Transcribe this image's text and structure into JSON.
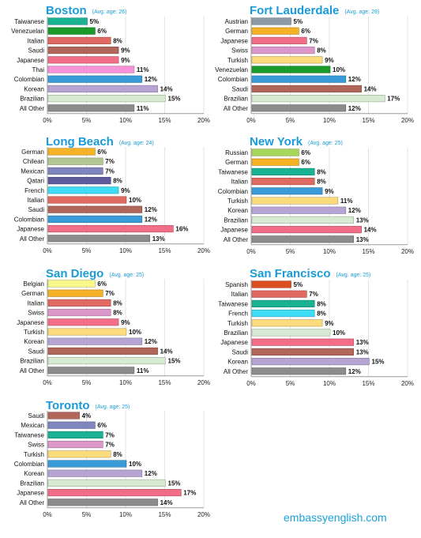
{
  "footer": {
    "site": "embassyenglish.com"
  },
  "colors": {
    "title": "#1a9bd7",
    "Taiwanese": "#19b394",
    "Venezuelan": "#1a9a2a",
    "Italian": "#e06a62",
    "Saudi": "#b2665a",
    "Japanese": "#f26e88",
    "Thai": "#f792da",
    "Colombian": "#3a9bd9",
    "Korean": "#b6a4d4",
    "Brazilian": "#d7ebd2",
    "All Other": "#8c8c8c",
    "Austrian": "#8c9aa8",
    "German": "#f5b225",
    "Swiss": "#dc98cb",
    "Turkish": "#fbdb7c",
    "Chilean": "#b3c793",
    "Mexican": "#7f86bf",
    "Qatari": "#5e5a9c",
    "French": "#3fdcf6",
    "Russian": "#a7d85c",
    "Belgian": "#f8f88a",
    "Spanish": "#dc4e1f"
  },
  "chart_data": [
    {
      "type": "bar",
      "orientation": "horizontal",
      "title": "Boston",
      "subtitle": "(Avg. age: 26)",
      "xlim": [
        0,
        20
      ],
      "ticks": [
        "0%",
        "5%",
        "10%",
        "15%",
        "20%"
      ],
      "categories": [
        "Taiwanese",
        "Venezuelan",
        "Italian",
        "Saudi",
        "Japanese",
        "Thai",
        "Colombian",
        "Korean",
        "Brazilian",
        "All Other"
      ],
      "values": [
        5,
        6,
        8,
        9,
        9,
        11,
        12,
        14,
        15,
        11
      ],
      "labels": [
        "5%",
        "6%",
        "8%",
        "9%",
        "9%",
        "11%",
        "12%",
        "14%",
        "15%",
        "11%"
      ]
    },
    {
      "type": "bar",
      "orientation": "horizontal",
      "title": "Fort Lauderdale",
      "subtitle": "(Avg. age: 28)",
      "xlim": [
        0,
        20
      ],
      "ticks": [
        "0%",
        "5%",
        "10%",
        "15%",
        "20%"
      ],
      "categories": [
        "Austrian",
        "German",
        "Japanese",
        "Swiss",
        "Turkish",
        "Venezuelan",
        "Colombian",
        "Saudi",
        "Brazilian",
        "All Other"
      ],
      "values": [
        5,
        6,
        7,
        8,
        9,
        10,
        12,
        14,
        17,
        12
      ],
      "labels": [
        "5%",
        "6%",
        "7%",
        "8%",
        "9%",
        "10%",
        "12%",
        "14%",
        "17%",
        "12%"
      ]
    },
    {
      "type": "bar",
      "orientation": "horizontal",
      "title": "Long Beach",
      "subtitle": "(Avg. age: 24)",
      "xlim": [
        0,
        20
      ],
      "ticks": [
        "0%",
        "5%",
        "10%",
        "15%",
        "20%"
      ],
      "categories": [
        "German",
        "Chilean",
        "Mexican",
        "Qatari",
        "French",
        "Italian",
        "Saudi",
        "Colombian",
        "Japanese",
        "All Other"
      ],
      "values": [
        6,
        7,
        7,
        8,
        9,
        10,
        12,
        12,
        16,
        13
      ],
      "labels": [
        "6%",
        "7%",
        "7%",
        "8%",
        "9%",
        "10%",
        "12%",
        "12%",
        "16%",
        "13%"
      ]
    },
    {
      "type": "bar",
      "orientation": "horizontal",
      "title": "New York",
      "subtitle": "(Avg. age: 25)",
      "xlim": [
        0,
        20
      ],
      "ticks": [
        "0%",
        "5%",
        "10%",
        "15%",
        "20%"
      ],
      "categories": [
        "Russian",
        "German",
        "Taiwanese",
        "Italian",
        "Colombian",
        "Turkish",
        "Korean",
        "Brazilian",
        "Japanese",
        "All Other"
      ],
      "values": [
        6,
        6,
        8,
        8,
        9,
        11,
        12,
        13,
        14,
        13
      ],
      "labels": [
        "6%",
        "6%",
        "8%",
        "8%",
        "9%",
        "11%",
        "12%",
        "13%",
        "14%",
        "13%"
      ]
    },
    {
      "type": "bar",
      "orientation": "horizontal",
      "title": "San Diego",
      "subtitle": "(Avg. age: 25)",
      "xlim": [
        0,
        20
      ],
      "ticks": [
        "0%",
        "5%",
        "10%",
        "15%",
        "20%"
      ],
      "categories": [
        "Belgian",
        "German",
        "Italian",
        "Swiss",
        "Japanese",
        "Turkish",
        "Korean",
        "Saudi",
        "Brazilian",
        "All Other"
      ],
      "values": [
        6,
        7,
        8,
        8,
        9,
        10,
        12,
        14,
        15,
        11
      ],
      "labels": [
        "6%",
        "7%",
        "8%",
        "8%",
        "9%",
        "10%",
        "12%",
        "14%",
        "15%",
        "11%"
      ]
    },
    {
      "type": "bar",
      "orientation": "horizontal",
      "title": "San Francisco",
      "subtitle": "(Avg. age: 25)",
      "xlim": [
        0,
        20
      ],
      "ticks": [
        "0%",
        "5%",
        "10%",
        "15%",
        "20%"
      ],
      "categories": [
        "Spanish",
        "Italian",
        "Taiwanese",
        "French",
        "Turkish",
        "Brazilian",
        "Japanese",
        "Saudi",
        "Korean",
        "All Other"
      ],
      "values": [
        5,
        7,
        8,
        8,
        9,
        10,
        13,
        13,
        15,
        12
      ],
      "labels": [
        "5%",
        "7%",
        "8%",
        "8%",
        "9%",
        "10%",
        "13%",
        "13%",
        "15%",
        "12%"
      ]
    },
    {
      "type": "bar",
      "orientation": "horizontal",
      "title": "Toronto",
      "subtitle": "(Avg. age: 25)",
      "xlim": [
        0,
        20
      ],
      "ticks": [
        "0%",
        "5%",
        "10%",
        "15%",
        "20%"
      ],
      "categories": [
        "Saudi",
        "Mexican",
        "Taiwanese",
        "Swiss",
        "Turkish",
        "Colombian",
        "Korean",
        "Brazilian",
        "Japanese",
        "All Other"
      ],
      "values": [
        4,
        6,
        7,
        7,
        8,
        10,
        12,
        15,
        17,
        14
      ],
      "labels": [
        "4%",
        "6%",
        "7%",
        "7%",
        "8%",
        "10%",
        "12%",
        "15%",
        "17%",
        "14%"
      ]
    }
  ]
}
